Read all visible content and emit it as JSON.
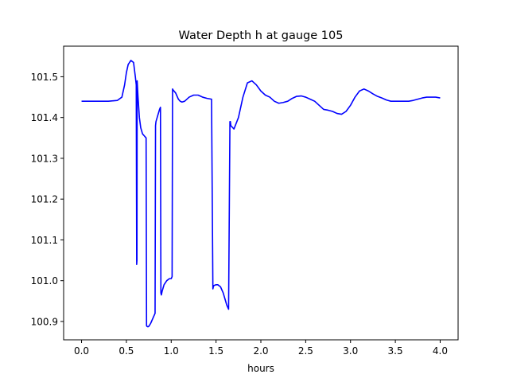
{
  "chart_data": {
    "type": "line",
    "title": "Water Depth h at gauge 105",
    "xlabel": "hours",
    "ylabel": "",
    "xlim": [
      -0.2,
      4.2
    ],
    "ylim": [
      100.855,
      101.575
    ],
    "xticks": [
      0.0,
      0.5,
      1.0,
      1.5,
      2.0,
      2.5,
      3.0,
      3.5,
      4.0
    ],
    "xtick_labels": [
      "0.0",
      "0.5",
      "1.0",
      "1.5",
      "2.0",
      "2.5",
      "3.0",
      "3.5",
      "4.0"
    ],
    "yticks": [
      100.9,
      101.0,
      101.1,
      101.2,
      101.3,
      101.4,
      101.5
    ],
    "ytick_labels": [
      "100.9",
      "101.0",
      "101.1",
      "101.2",
      "101.3",
      "101.4",
      "101.5"
    ],
    "grid": false,
    "series": [
      {
        "color": "#0000ff",
        "x": [
          0.0,
          0.1,
          0.2,
          0.3,
          0.4,
          0.45,
          0.48,
          0.5,
          0.52,
          0.55,
          0.58,
          0.6,
          0.61,
          0.615,
          0.618,
          0.62,
          0.63,
          0.645,
          0.66,
          0.68,
          0.7,
          0.72,
          0.725,
          0.73,
          0.74,
          0.75,
          0.77,
          0.8,
          0.82,
          0.825,
          0.83,
          0.85,
          0.87,
          0.88,
          0.885,
          0.89,
          0.9,
          0.92,
          0.95,
          0.98,
          1.0,
          1.01,
          1.015,
          1.02,
          1.05,
          1.08,
          1.1,
          1.12,
          1.15,
          1.2,
          1.25,
          1.3,
          1.35,
          1.4,
          1.45,
          1.465,
          1.47,
          1.475,
          1.5,
          1.52,
          1.55,
          1.58,
          1.6,
          1.62,
          1.64,
          1.655,
          1.66,
          1.665,
          1.7,
          1.75,
          1.8,
          1.85,
          1.9,
          1.95,
          2.0,
          2.05,
          2.1,
          2.15,
          2.2,
          2.25,
          2.3,
          2.35,
          2.4,
          2.45,
          2.5,
          2.55,
          2.6,
          2.65,
          2.7,
          2.75,
          2.8,
          2.85,
          2.9,
          2.95,
          3.0,
          3.05,
          3.1,
          3.15,
          3.2,
          3.25,
          3.3,
          3.35,
          3.4,
          3.45,
          3.5,
          3.55,
          3.6,
          3.65,
          3.7,
          3.75,
          3.8,
          3.85,
          3.9,
          3.95,
          4.0
        ],
        "y": [
          101.44,
          101.44,
          101.44,
          101.44,
          101.442,
          101.45,
          101.48,
          101.51,
          101.53,
          101.54,
          101.535,
          101.5,
          101.48,
          101.04,
          101.05,
          101.49,
          101.45,
          101.4,
          101.375,
          101.36,
          101.355,
          101.35,
          100.89,
          100.888,
          100.887,
          100.888,
          100.895,
          100.91,
          100.92,
          101.38,
          101.39,
          101.405,
          101.42,
          101.425,
          100.97,
          100.965,
          100.975,
          100.99,
          101.0,
          101.005,
          101.005,
          101.01,
          101.47,
          101.468,
          101.46,
          101.445,
          101.44,
          101.438,
          101.44,
          101.45,
          101.455,
          101.455,
          101.45,
          101.447,
          101.445,
          100.98,
          100.985,
          100.988,
          100.99,
          100.99,
          100.985,
          100.97,
          100.955,
          100.94,
          100.93,
          101.39,
          101.39,
          101.38,
          101.372,
          101.4,
          101.45,
          101.485,
          101.49,
          101.48,
          101.465,
          101.455,
          101.45,
          101.44,
          101.435,
          101.437,
          101.44,
          101.447,
          101.452,
          101.453,
          101.45,
          101.445,
          101.44,
          101.43,
          101.42,
          101.418,
          101.415,
          101.41,
          101.408,
          101.415,
          101.43,
          101.45,
          101.465,
          101.47,
          101.465,
          101.458,
          101.452,
          101.448,
          101.443,
          101.44,
          101.44,
          101.44,
          101.44,
          101.44,
          101.442,
          101.445,
          101.448,
          101.45,
          101.45,
          101.45,
          101.448
        ]
      }
    ]
  }
}
